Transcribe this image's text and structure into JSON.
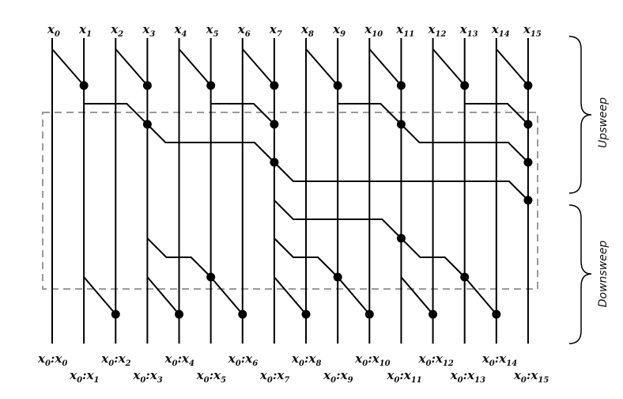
{
  "inputs": [
    "x_0",
    "x_1",
    "x_2",
    "x_3",
    "x_4",
    "x_5",
    "x_6",
    "x_7",
    "x_8",
    "x_9",
    "x_10",
    "x_11",
    "x_12",
    "x_13",
    "x_14",
    "x_15"
  ],
  "outputs": [
    [
      "x",
      "0",
      "x",
      "0"
    ],
    [
      "x",
      "0",
      "x",
      "1"
    ],
    [
      "x",
      "0",
      "x",
      "2"
    ],
    [
      "x",
      "0",
      "x",
      "3"
    ],
    [
      "x",
      "0",
      "x",
      "4"
    ],
    [
      "x",
      "0",
      "x",
      "5"
    ],
    [
      "x",
      "0",
      "x",
      "6"
    ],
    [
      "x",
      "0",
      "x",
      "7"
    ],
    [
      "x",
      "0",
      "x",
      "8"
    ],
    [
      "x",
      "0",
      "x",
      "9"
    ],
    [
      "x",
      "0",
      "x",
      "10"
    ],
    [
      "x",
      "0",
      "x",
      "11"
    ],
    [
      "x",
      "0",
      "x",
      "12"
    ],
    [
      "x",
      "0",
      "x",
      "13"
    ],
    [
      "x",
      "0",
      "x",
      "14"
    ],
    [
      "x",
      "0",
      "x",
      "15"
    ]
  ],
  "phases": {
    "upsweep": "Upsweep",
    "downsweep": "Downsweep"
  },
  "upsweep_ops": [
    [
      0,
      1
    ],
    [
      2,
      3
    ],
    [
      4,
      5
    ],
    [
      6,
      7
    ],
    [
      8,
      9
    ],
    [
      10,
      11
    ],
    [
      12,
      13
    ],
    [
      14,
      15
    ],
    [
      1,
      3
    ],
    [
      5,
      7
    ],
    [
      9,
      11
    ],
    [
      13,
      15
    ],
    [
      3,
      7
    ],
    [
      11,
      15
    ],
    [
      7,
      15
    ]
  ],
  "downsweep_ops": [
    [
      7,
      11
    ],
    [
      3,
      5
    ],
    [
      7,
      9
    ],
    [
      11,
      13
    ],
    [
      1,
      2
    ],
    [
      3,
      4
    ],
    [
      5,
      6
    ],
    [
      7,
      8
    ],
    [
      9,
      10
    ],
    [
      11,
      12
    ],
    [
      13,
      14
    ]
  ],
  "colors": {
    "line": "#000000",
    "dashed_box": "#9a9a9a",
    "node": "#000000"
  }
}
